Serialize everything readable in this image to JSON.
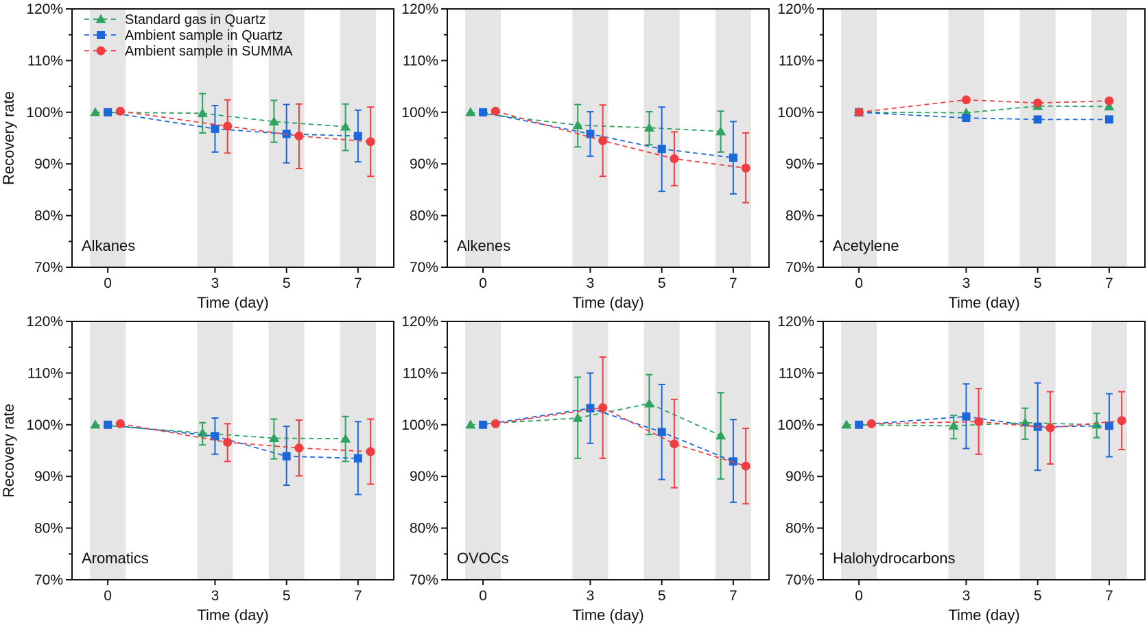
{
  "chart_data": {
    "type": "line",
    "layout": "2x3 small multiples",
    "ylabel": "Recovery rate",
    "xlabel": "Time (day)",
    "x_ticks": [
      0,
      3,
      5,
      7
    ],
    "x_tick_labels": [
      "0",
      "3",
      "5",
      "7"
    ],
    "xlim": [
      -1,
      8
    ],
    "ylim": [
      70,
      120
    ],
    "y_ticks": [
      70,
      80,
      90,
      100,
      110,
      120
    ],
    "y_tick_labels": [
      "70%",
      "80%",
      "90%",
      "100%",
      "110%",
      "120%"
    ],
    "y_minor_step": 5,
    "shaded_bands": [
      [
        -0.5,
        0.5
      ],
      [
        2.5,
        3.5
      ],
      [
        4.5,
        5.5
      ],
      [
        6.5,
        7.5
      ]
    ],
    "band_color": "#e5e5e5",
    "legend": {
      "placement": "top-left of first panel",
      "entries": [
        {
          "label": "Standard gas in Quartz",
          "series": "standard"
        },
        {
          "label": "Ambient sample in Quartz",
          "series": "ambient_quartz"
        },
        {
          "label": "Ambient sample in SUMMA",
          "series": "ambient_summa"
        }
      ]
    },
    "series_styles": {
      "standard": {
        "name": "Standard gas in Quartz",
        "color": "#2da35e",
        "marker": "triangle",
        "offset_days": -0.35,
        "line": "dashed"
      },
      "ambient_quartz": {
        "name": "Ambient sample in Quartz",
        "color": "#1c68db",
        "marker": "square",
        "offset_days": 0,
        "line": "dashed"
      },
      "ambient_summa": {
        "name": "Ambient sample in SUMMA",
        "color": "#ef3e42",
        "marker": "circle",
        "offset_days": 0.35,
        "line": "dashed"
      }
    },
    "panels": [
      {
        "label": "Alkanes",
        "row": 0,
        "col": 0,
        "show_ylabel": true,
        "offsets": true,
        "series": {
          "standard": {
            "x": [
              0,
              3,
              5,
              7
            ],
            "y": [
              100.0,
              99.8,
              98.2,
              97.2
            ],
            "err_low": [
              100.0,
              96.0,
              94.2,
              92.6
            ],
            "err_high": [
              100.0,
              103.6,
              102.3,
              101.6
            ]
          },
          "ambient_quartz": {
            "x": [
              0,
              3,
              5,
              7
            ],
            "y": [
              100.0,
              96.8,
              95.8,
              95.4
            ],
            "err_low": [
              100.0,
              92.3,
              90.2,
              90.4
            ],
            "err_high": [
              100.0,
              101.3,
              101.5,
              100.4
            ]
          },
          "ambient_summa": {
            "x": [
              0,
              3,
              5,
              7
            ],
            "y": [
              100.2,
              97.3,
              95.4,
              94.3
            ],
            "err_low": [
              100.2,
              92.1,
              89.1,
              87.6
            ],
            "err_high": [
              100.2,
              102.4,
              101.6,
              101.0
            ]
          }
        }
      },
      {
        "label": "Alkenes",
        "row": 0,
        "col": 1,
        "show_ylabel": false,
        "offsets": true,
        "series": {
          "standard": {
            "x": [
              0,
              3,
              5,
              7
            ],
            "y": [
              100.0,
              97.5,
              97.0,
              96.3
            ],
            "err_low": [
              100.0,
              93.3,
              93.7,
              92.3
            ],
            "err_high": [
              100.0,
              101.5,
              100.1,
              100.2
            ]
          },
          "ambient_quartz": {
            "x": [
              0,
              3,
              5,
              7
            ],
            "y": [
              100.0,
              95.8,
              92.9,
              91.2
            ],
            "err_low": [
              100.0,
              91.5,
              84.7,
              84.2
            ],
            "err_high": [
              100.0,
              100.1,
              101.0,
              98.2
            ]
          },
          "ambient_summa": {
            "x": [
              0,
              3,
              5,
              7
            ],
            "y": [
              100.2,
              94.5,
              91.0,
              89.2
            ],
            "err_low": [
              100.2,
              87.6,
              85.8,
              82.5
            ],
            "err_high": [
              100.2,
              101.4,
              96.2,
              96.0
            ]
          }
        }
      },
      {
        "label": "Acetylene",
        "row": 0,
        "col": 2,
        "show_ylabel": false,
        "offsets": false,
        "series": {
          "standard": {
            "x": [
              0,
              3,
              5,
              7
            ],
            "y": [
              100.0,
              99.9,
              101.2,
              101.1
            ]
          },
          "ambient_quartz": {
            "x": [
              0,
              3,
              5,
              7
            ],
            "y": [
              100.0,
              98.9,
              98.6,
              98.6
            ]
          },
          "ambient_summa": {
            "x": [
              0,
              3,
              5,
              7
            ],
            "y": [
              100.0,
              102.4,
              101.8,
              102.2
            ]
          }
        }
      },
      {
        "label": "Aromatics",
        "row": 1,
        "col": 0,
        "show_ylabel": true,
        "offsets": true,
        "series": {
          "standard": {
            "x": [
              0,
              3,
              5,
              7
            ],
            "y": [
              100.0,
              98.4,
              97.4,
              97.3
            ],
            "err_low": [
              100.0,
              96.1,
              93.4,
              92.9
            ],
            "err_high": [
              100.0,
              100.4,
              101.1,
              101.6
            ]
          },
          "ambient_quartz": {
            "x": [
              0,
              3,
              5,
              7
            ],
            "y": [
              100.0,
              97.8,
              93.9,
              93.5
            ],
            "err_low": [
              100.0,
              94.3,
              88.3,
              86.5
            ],
            "err_high": [
              100.0,
              101.3,
              99.7,
              100.6
            ]
          },
          "ambient_summa": {
            "x": [
              0,
              3,
              5,
              7
            ],
            "y": [
              100.2,
              96.6,
              95.5,
              94.8
            ],
            "err_low": [
              100.2,
              92.9,
              90.1,
              88.5
            ],
            "err_high": [
              100.2,
              100.2,
              100.9,
              101.1
            ]
          }
        }
      },
      {
        "label": "OVOCs",
        "row": 1,
        "col": 1,
        "show_ylabel": false,
        "offsets": true,
        "series": {
          "standard": {
            "x": [
              0,
              3,
              5,
              7
            ],
            "y": [
              100.0,
              101.3,
              104.1,
              97.9
            ],
            "err_low": [
              100.0,
              93.5,
              98.1,
              89.5
            ],
            "err_high": [
              100.0,
              109.2,
              109.7,
              106.2
            ]
          },
          "ambient_quartz": {
            "x": [
              0,
              3,
              5,
              7
            ],
            "y": [
              100.0,
              103.2,
              98.6,
              92.9
            ],
            "err_low": [
              100.0,
              96.4,
              89.4,
              85.0
            ],
            "err_high": [
              100.0,
              110.0,
              107.8,
              101.0
            ]
          },
          "ambient_summa": {
            "x": [
              0,
              3,
              5,
              7
            ],
            "y": [
              100.2,
              103.3,
              96.3,
              92.0
            ],
            "err_low": [
              100.2,
              93.5,
              87.8,
              84.7
            ],
            "err_high": [
              100.2,
              113.1,
              104.9,
              99.3
            ]
          }
        }
      },
      {
        "label": "Halohydrocarbons",
        "row": 1,
        "col": 2,
        "show_ylabel": false,
        "offsets": true,
        "series": {
          "standard": {
            "x": [
              0,
              3,
              5,
              7
            ],
            "y": [
              100.0,
              99.8,
              100.4,
              100.0
            ],
            "err_low": [
              100.0,
              97.3,
              97.2,
              97.5
            ],
            "err_high": [
              100.0,
              101.8,
              103.2,
              102.2
            ]
          },
          "ambient_quartz": {
            "x": [
              0,
              3,
              5,
              7
            ],
            "y": [
              100.0,
              101.6,
              99.6,
              99.8
            ],
            "err_low": [
              100.0,
              95.4,
              91.2,
              93.8
            ],
            "err_high": [
              100.0,
              107.9,
              108.1,
              106.0
            ]
          },
          "ambient_summa": {
            "x": [
              0,
              3,
              5,
              7
            ],
            "y": [
              100.2,
              100.6,
              99.4,
              100.8
            ],
            "err_low": [
              100.2,
              94.3,
              92.4,
              95.2
            ],
            "err_high": [
              100.2,
              107.0,
              106.4,
              106.4
            ]
          }
        }
      }
    ]
  }
}
